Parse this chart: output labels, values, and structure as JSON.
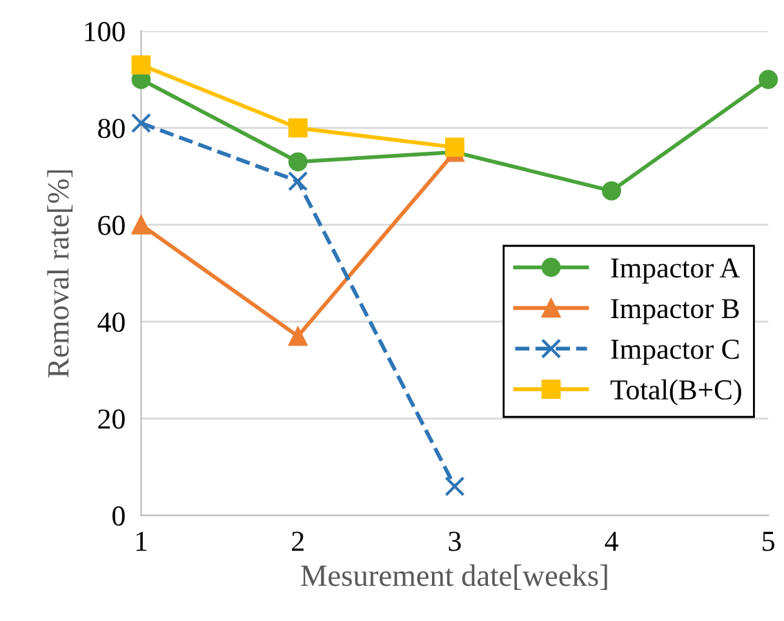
{
  "chart_data": {
    "type": "line",
    "xlabel": "Mesurement date[weeks]",
    "ylabel": "Removal rate[%]",
    "x": [
      1,
      2,
      3,
      4,
      5
    ],
    "series": [
      {
        "name": "Impactor A",
        "color": "#4aa33a",
        "values": [
          90,
          73,
          75,
          67,
          90
        ],
        "marker": "circle",
        "line_style": "solid"
      },
      {
        "name": "Impactor B",
        "color": "#ed7d31",
        "values": [
          60,
          37,
          75,
          null,
          null
        ],
        "marker": "triangle",
        "line_style": "solid"
      },
      {
        "name": "Impactor C",
        "color": "#2e75b6",
        "values": [
          81,
          69,
          6,
          null,
          null
        ],
        "marker": "cross",
        "line_style": "dashed"
      },
      {
        "name": "Total(B+C)",
        "color": "#ffc000",
        "values": [
          93,
          80,
          76,
          null,
          null
        ],
        "marker": "square",
        "line_style": "solid"
      }
    ],
    "xlim": [
      1,
      5
    ],
    "xticks": [
      1,
      2,
      3,
      4,
      5
    ],
    "ylim": [
      0,
      100
    ],
    "yticks": [
      0,
      20,
      40,
      60,
      80,
      100
    ],
    "grid": "y",
    "legend": "right"
  }
}
